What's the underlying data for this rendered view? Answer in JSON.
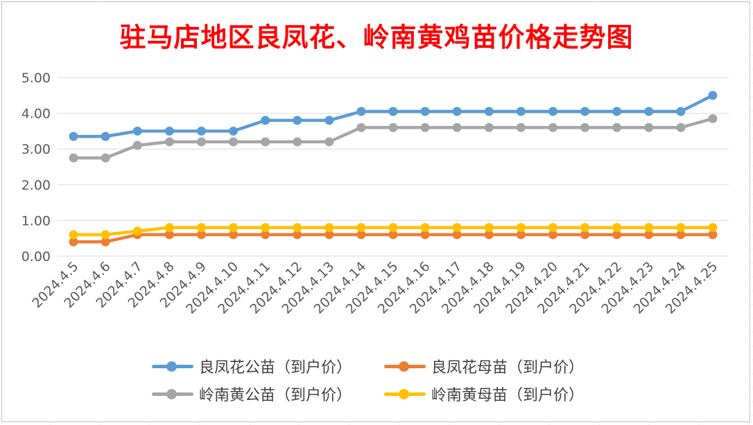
{
  "chart_data": {
    "type": "line",
    "title": "驻马店地区良凤花、岭南黄鸡苗价格走势图",
    "xlabel": "",
    "ylabel": "",
    "ylim": [
      0,
      5
    ],
    "yticks": [
      "0.00",
      "1.00",
      "2.00",
      "3.00",
      "4.00",
      "5.00"
    ],
    "grid": true,
    "legend_position": "bottom",
    "categories": [
      "2024.4.5",
      "2024.4.6",
      "2024.4.7",
      "2024.4.8",
      "2024.4.9",
      "2024.4.10",
      "2024.4.11",
      "2024.4.12",
      "2024.4.13",
      "2024.4.14",
      "2024.4.15",
      "2024.4.16",
      "2024.4.17",
      "2024.4.18",
      "2024.4.19",
      "2024.4.20",
      "2024.4.21",
      "2024.4.22",
      "2024.4.23",
      "2024.4.24",
      "2024.4.25"
    ],
    "series": [
      {
        "name": "良凤花公苗（到户价）",
        "color": "#5b9bd5",
        "values": [
          3.35,
          3.35,
          3.5,
          3.5,
          3.5,
          3.5,
          3.8,
          3.8,
          3.8,
          4.05,
          4.05,
          4.05,
          4.05,
          4.05,
          4.05,
          4.05,
          4.05,
          4.05,
          4.05,
          4.05,
          4.5
        ]
      },
      {
        "name": "良凤花母苗（到户价）",
        "color": "#ed7d31",
        "values": [
          0.4,
          0.4,
          0.6,
          0.6,
          0.6,
          0.6,
          0.6,
          0.6,
          0.6,
          0.6,
          0.6,
          0.6,
          0.6,
          0.6,
          0.6,
          0.6,
          0.6,
          0.6,
          0.6,
          0.6,
          0.6
        ]
      },
      {
        "name": "岭南黄公苗（到户价）",
        "color": "#a5a5a5",
        "values": [
          2.75,
          2.75,
          3.1,
          3.2,
          3.2,
          3.2,
          3.2,
          3.2,
          3.2,
          3.6,
          3.6,
          3.6,
          3.6,
          3.6,
          3.6,
          3.6,
          3.6,
          3.6,
          3.6,
          3.6,
          3.85
        ]
      },
      {
        "name": "岭南黄母苗（到户价）",
        "color": "#ffc000",
        "values": [
          0.6,
          0.6,
          0.7,
          0.8,
          0.8,
          0.8,
          0.8,
          0.8,
          0.8,
          0.8,
          0.8,
          0.8,
          0.8,
          0.8,
          0.8,
          0.8,
          0.8,
          0.8,
          0.8,
          0.8,
          0.8
        ]
      }
    ]
  }
}
